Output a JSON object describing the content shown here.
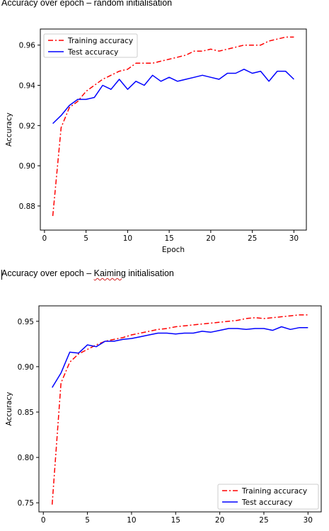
{
  "document": {
    "heading_1": "Accuracy over epoch – random initialisation",
    "heading_2_prefix": "Accuracy over epoch – ",
    "heading_2_flagged": "Kaiming",
    "heading_2_suffix": " initialisation"
  },
  "colors": {
    "training": "#ff0000",
    "test": "#0000ff"
  },
  "chart_data": [
    {
      "type": "line",
      "title": "",
      "xlabel": "Epoch",
      "ylabel": "Accuracy",
      "xlim": [
        -0.5,
        31.5
      ],
      "ylim": [
        0.868,
        0.968
      ],
      "xticks": [
        0,
        5,
        10,
        15,
        20,
        25,
        30
      ],
      "yticks": [
        0.88,
        0.9,
        0.92,
        0.94,
        0.96
      ],
      "ytick_labels": [
        "0.88",
        "0.90",
        "0.92",
        "0.94",
        "0.96"
      ],
      "legend_position": "top-left",
      "grid": false,
      "x": [
        1,
        2,
        3,
        4,
        5,
        6,
        7,
        8,
        9,
        10,
        11,
        12,
        13,
        14,
        15,
        16,
        17,
        18,
        19,
        20,
        21,
        22,
        23,
        24,
        25,
        26,
        27,
        28,
        29,
        30
      ],
      "series": [
        {
          "name": "Training accuracy",
          "style": "dash-dot",
          "color": "#ff0000",
          "values": [
            0.875,
            0.919,
            0.929,
            0.932,
            0.937,
            0.94,
            0.943,
            0.945,
            0.947,
            0.948,
            0.951,
            0.951,
            0.951,
            0.952,
            0.953,
            0.954,
            0.955,
            0.957,
            0.957,
            0.958,
            0.957,
            0.958,
            0.959,
            0.96,
            0.96,
            0.96,
            0.962,
            0.963,
            0.964,
            0.964
          ]
        },
        {
          "name": "Test accuracy",
          "style": "solid",
          "color": "#0000ff",
          "values": [
            0.921,
            0.925,
            0.93,
            0.933,
            0.933,
            0.934,
            0.94,
            0.938,
            0.943,
            0.938,
            0.942,
            0.94,
            0.945,
            0.942,
            0.944,
            0.942,
            0.943,
            0.944,
            0.945,
            0.944,
            0.943,
            0.946,
            0.946,
            0.948,
            0.946,
            0.947,
            0.942,
            0.947,
            0.947,
            0.943
          ]
        }
      ]
    },
    {
      "type": "line",
      "title": "",
      "xlabel": "",
      "ylabel": "Accuracy",
      "xlim": [
        -0.5,
        31.5
      ],
      "ylim": [
        0.74,
        0.967
      ],
      "xticks": [
        0,
        5,
        10,
        15,
        20,
        25,
        30
      ],
      "yticks": [
        0.75,
        0.8,
        0.85,
        0.9,
        0.95
      ],
      "ytick_labels": [
        "0.75",
        "0.80",
        "0.85",
        "0.90",
        "0.95"
      ],
      "legend_position": "bottom-right",
      "grid": false,
      "x": [
        1,
        2,
        3,
        4,
        5,
        6,
        7,
        8,
        9,
        10,
        11,
        12,
        13,
        14,
        15,
        16,
        17,
        18,
        19,
        20,
        21,
        22,
        23,
        24,
        25,
        26,
        27,
        28,
        29,
        30
      ],
      "series": [
        {
          "name": "Training accuracy",
          "style": "dash-dot",
          "color": "#ff0000",
          "values": [
            0.748,
            0.882,
            0.905,
            0.914,
            0.919,
            0.924,
            0.928,
            0.93,
            0.932,
            0.935,
            0.937,
            0.939,
            0.941,
            0.942,
            0.944,
            0.945,
            0.946,
            0.947,
            0.948,
            0.949,
            0.95,
            0.951,
            0.953,
            0.954,
            0.953,
            0.954,
            0.955,
            0.956,
            0.957,
            0.957
          ]
        },
        {
          "name": "Test accuracy",
          "style": "solid",
          "color": "#0000ff",
          "values": [
            0.877,
            0.893,
            0.916,
            0.915,
            0.924,
            0.922,
            0.928,
            0.928,
            0.93,
            0.931,
            0.933,
            0.935,
            0.937,
            0.937,
            0.936,
            0.937,
            0.937,
            0.939,
            0.938,
            0.94,
            0.942,
            0.942,
            0.941,
            0.942,
            0.942,
            0.94,
            0.944,
            0.941,
            0.943,
            0.943
          ]
        }
      ]
    }
  ]
}
